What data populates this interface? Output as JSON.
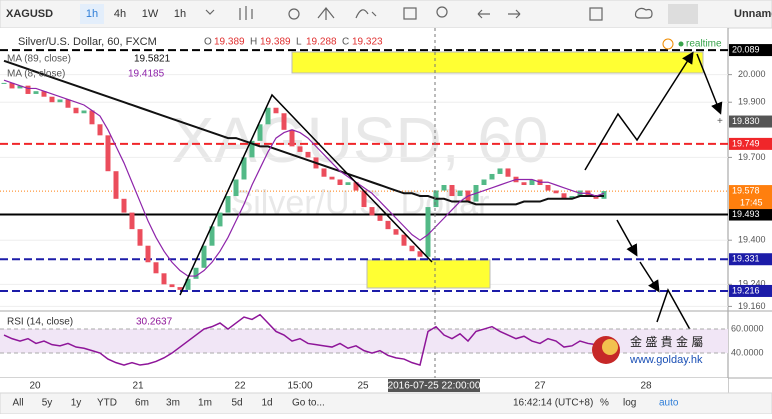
{
  "toolbar": {
    "symbol": "XAGUSD",
    "intervals": [
      "1h",
      "4h",
      "1W",
      "1h"
    ],
    "layout_name": "Unnamed"
  },
  "legend": {
    "ohlc": [
      {
        "key": "O",
        "value": 19.389
      },
      {
        "key": "H",
        "value": 19.389
      },
      {
        "key": "L",
        "value": 19.288
      },
      {
        "key": "C",
        "value": 19.323
      }
    ],
    "indicators": [
      {
        "name": "MA (89, close)",
        "value": 19.5821
      },
      {
        "name": "MA (8, close)",
        "value": 19.4185
      }
    ],
    "status": "realtime"
  },
  "watermark": {
    "symbol": "XAGUSD, 60",
    "description": "Silver/U.S. Dollar"
  },
  "chart_data": {
    "type": "candlestick",
    "title": "Silver/U.S. Dollar, 60, FXCM",
    "ylim": [
      19.147,
      20.169
    ],
    "yticks": [
      {
        "value": 20.0,
        "label": "20.000"
      },
      {
        "value": 19.9,
        "label": "19.900"
      },
      {
        "value": 19.7,
        "label": "19.700"
      },
      {
        "value": 19.4,
        "label": "19.400"
      },
      {
        "value": 19.24,
        "label": "19.240"
      },
      {
        "value": 19.16,
        "label": "19.160"
      }
    ],
    "grid": true,
    "up_color": "#53b987",
    "down_color": "#eb4d5c",
    "closes": [
      19.97,
      19.95,
      19.96,
      19.93,
      19.94,
      19.92,
      19.9,
      19.91,
      19.88,
      19.86,
      19.87,
      19.82,
      19.78,
      19.65,
      19.55,
      19.5,
      19.44,
      19.38,
      19.32,
      19.28,
      19.24,
      19.23,
      19.22,
      19.26,
      19.3,
      19.38,
      19.45,
      19.5,
      19.56,
      19.62,
      19.7,
      19.76,
      19.82,
      19.88,
      19.86,
      19.8,
      19.74,
      19.72,
      19.7,
      19.66,
      19.63,
      19.62,
      19.6,
      19.61,
      19.58,
      19.52,
      19.49,
      19.47,
      19.44,
      19.42,
      19.38,
      19.36,
      19.34,
      19.52,
      19.58,
      19.6,
      19.56,
      19.58,
      19.54,
      19.6,
      19.62,
      19.64,
      19.66,
      19.63,
      19.61,
      19.6,
      19.62,
      19.6,
      19.58,
      19.57,
      19.55,
      19.56,
      19.58,
      19.56,
      19.55,
      19.578
    ],
    "series": [
      {
        "name": "MA (89, close)",
        "color": "#111111",
        "values": [
          20.05,
          20.04,
          20.03,
          20.02,
          20.01,
          20.0,
          19.99,
          19.98,
          19.97,
          19.96,
          19.95,
          19.94,
          19.93,
          19.92,
          19.91,
          19.9,
          19.89,
          19.88,
          19.87,
          19.86,
          19.85,
          19.84,
          19.83,
          19.82,
          19.81,
          19.8,
          19.79,
          19.78,
          19.77,
          19.77,
          19.76,
          19.75,
          19.74,
          19.74,
          19.73,
          19.72,
          19.71,
          19.7,
          19.69,
          19.68,
          19.67,
          19.66,
          19.65,
          19.64,
          19.63,
          19.62,
          19.61,
          19.6,
          19.59,
          19.58,
          19.57,
          19.57,
          19.56,
          19.56,
          19.55,
          19.55,
          19.54,
          19.54,
          19.54,
          19.53,
          19.53,
          19.53,
          19.53,
          19.53,
          19.53,
          19.54,
          19.54,
          19.54,
          19.55,
          19.55,
          19.55,
          19.55,
          19.56,
          19.56,
          19.56,
          19.56
        ]
      },
      {
        "name": "MA (8, close)",
        "color": "#8e24aa",
        "values": [
          19.98,
          19.97,
          19.96,
          19.95,
          19.95,
          19.94,
          19.93,
          19.92,
          19.91,
          19.9,
          19.89,
          19.87,
          19.85,
          19.8,
          19.74,
          19.68,
          19.61,
          19.54,
          19.47,
          19.41,
          19.36,
          19.32,
          19.29,
          19.27,
          19.27,
          19.29,
          19.32,
          19.36,
          19.41,
          19.47,
          19.53,
          19.6,
          19.66,
          19.72,
          19.77,
          19.79,
          19.8,
          19.79,
          19.77,
          19.74,
          19.71,
          19.68,
          19.65,
          19.63,
          19.61,
          19.59,
          19.57,
          19.54,
          19.51,
          19.48,
          19.45,
          19.42,
          19.4,
          19.42,
          19.45,
          19.48,
          19.51,
          19.54,
          19.56,
          19.57,
          19.58,
          19.59,
          19.6,
          19.61,
          19.62,
          19.62,
          19.62,
          19.61,
          19.61,
          19.6,
          19.59,
          19.58,
          19.57,
          19.57,
          19.56,
          19.57
        ]
      }
    ],
    "levels": [
      {
        "value": 20.089,
        "color": "#000000",
        "style": "dashed"
      },
      {
        "value": 19.749,
        "color": "#f0262a",
        "style": "dashed"
      },
      {
        "value": 19.493,
        "color": "#000000",
        "style": "solid"
      },
      {
        "value": 19.331,
        "color": "#1c1ca8",
        "style": "dashed"
      },
      {
        "value": 19.216,
        "color": "#1c1ca8",
        "style": "dashed"
      }
    ],
    "crosshair_price": {
      "value": 19.83,
      "label": "19.830"
    },
    "last_price": {
      "value": 19.578,
      "countdown": "17:45",
      "color": "#ff7f0e"
    }
  },
  "rsi": {
    "title": "RSI (14, close)",
    "current": 30.2637,
    "color": "#8e1599",
    "ylim": [
      19.2,
      74.2
    ],
    "yticks": [
      {
        "value": 60,
        "label": "60.0000"
      },
      {
        "value": 40,
        "label": "40.0000"
      }
    ],
    "values": [
      55,
      52,
      50,
      52,
      48,
      50,
      47,
      46,
      48,
      45,
      44,
      42,
      40,
      35,
      32,
      30,
      32,
      30,
      31,
      33,
      36,
      40,
      45,
      50,
      55,
      60,
      62,
      65,
      60,
      65,
      70,
      68,
      72,
      65,
      58,
      55,
      50,
      52,
      48,
      47,
      46,
      45,
      48,
      44,
      46,
      42,
      40,
      42,
      38,
      36,
      35,
      32,
      30,
      58,
      62,
      55,
      52,
      56,
      50,
      58,
      60,
      62,
      58,
      55,
      52,
      54,
      50,
      48,
      52,
      50,
      45,
      46,
      50,
      48,
      47,
      46
    ]
  },
  "time_axis": {
    "labels": [
      "20",
      "21",
      "22",
      "15:00",
      "25",
      "27",
      "28"
    ],
    "crosshair": "2016-07-25 22:00:00"
  },
  "bottom_bar": {
    "ranges": [
      "All",
      "5y",
      "1y",
      "YTD",
      "6m",
      "3m",
      "1m",
      "5d",
      "1d"
    ],
    "goto": "Go to...",
    "clock": "16:42:14 (UTC+8)",
    "options": [
      "%",
      "log",
      "auto"
    ]
  },
  "logo": {
    "name": "金 盛 貴 金 屬",
    "url": "www.golday.hk"
  }
}
